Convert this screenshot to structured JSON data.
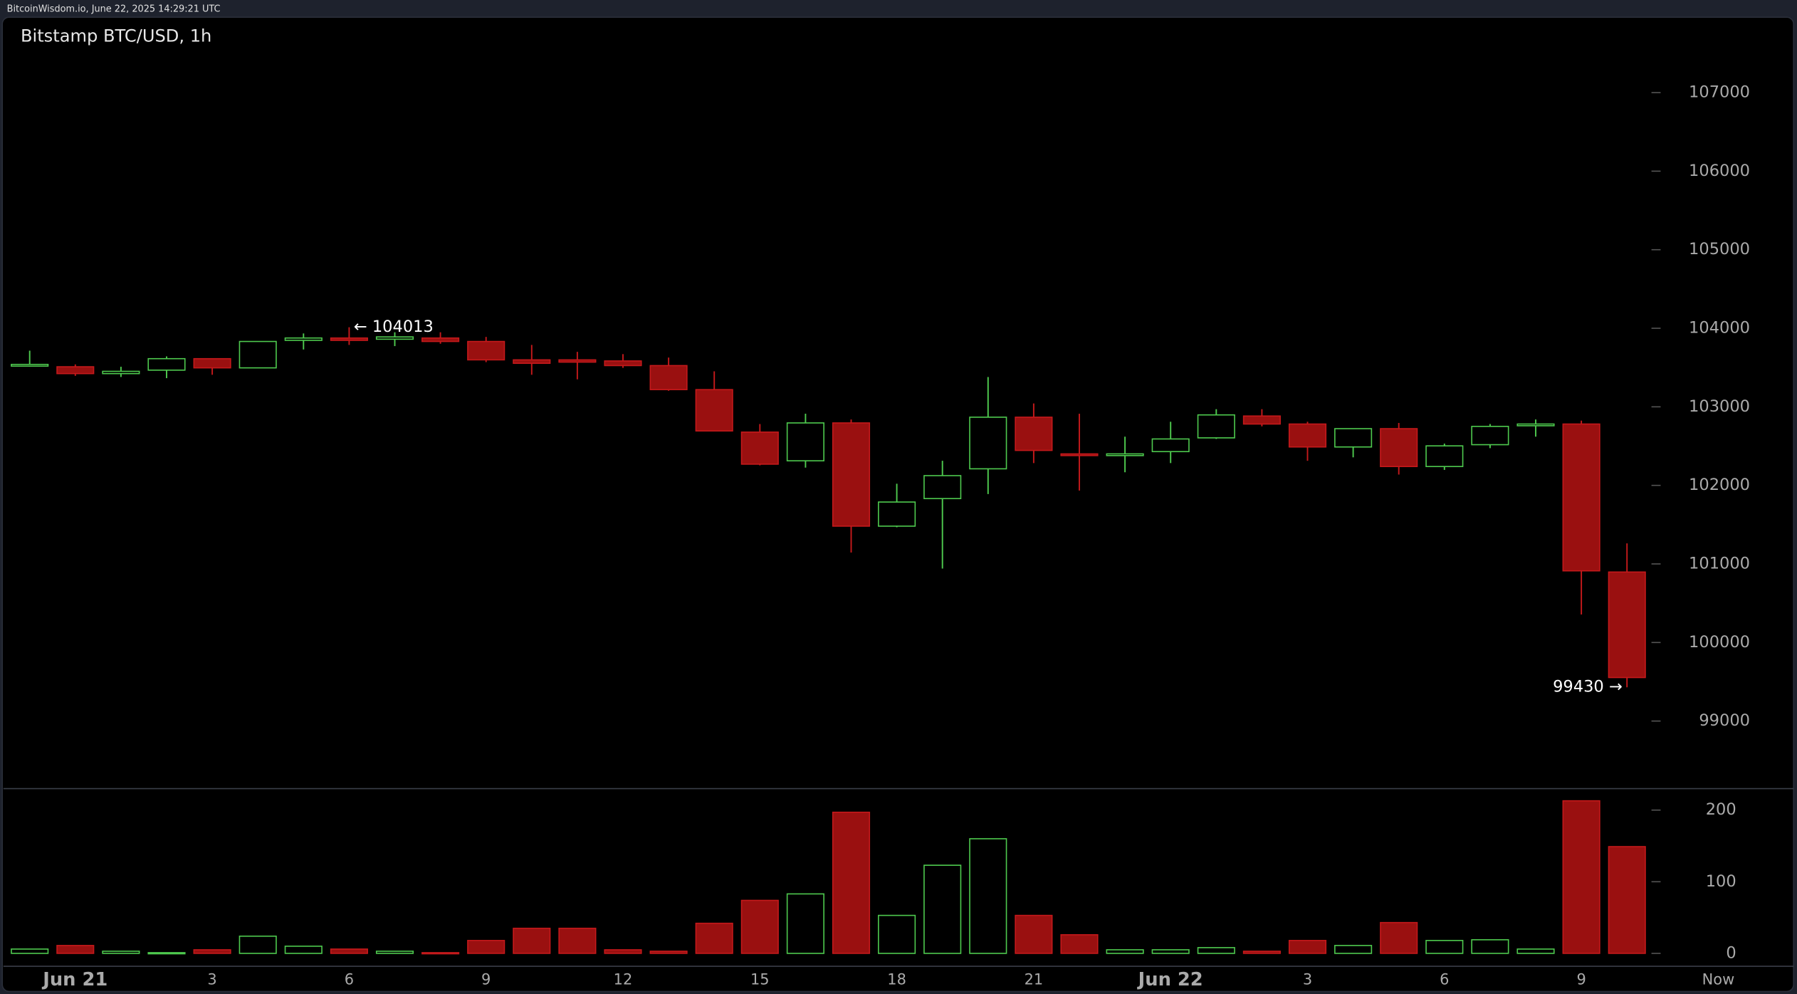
{
  "header": "BitcoinWisdom.io, June 22, 2025 14:29:21 UTC",
  "chart_data": {
    "type": "candlestick",
    "title": "Bitstamp BTC/USD, 1h",
    "up_color": "#4ec94e",
    "down_color": "#9a1010",
    "x": [
      -1,
      0,
      1,
      2,
      3,
      4,
      5,
      6,
      7,
      8,
      9,
      10,
      11,
      12,
      13,
      14,
      15,
      16,
      17,
      18,
      19,
      20,
      21,
      22,
      23,
      24,
      25,
      26,
      27,
      28,
      29,
      30,
      31,
      32,
      33,
      34
    ],
    "open": [
      103530,
      103510,
      103423,
      103467,
      103613,
      103496,
      103846,
      103876,
      103861,
      103876,
      103832,
      103598,
      103598,
      103584,
      103525,
      103219,
      102678,
      102313,
      102795,
      101481,
      101832,
      102211,
      102868,
      102401,
      102386,
      102430,
      102605,
      102883,
      102781,
      102489,
      102722,
      102240,
      102518,
      102766,
      102781,
      100897
    ],
    "high": [
      103715,
      103540,
      103510,
      103642,
      103613,
      103832,
      103934,
      104013,
      103949,
      103949,
      103890,
      103788,
      103700,
      103671,
      103627,
      103452,
      102781,
      102912,
      102839,
      102021,
      102313,
      103379,
      103043,
      102912,
      102620,
      102810,
      102970,
      102970,
      102810,
      102722,
      102795,
      102532,
      102781,
      102839,
      102824,
      101262
    ],
    "low": [
      103510,
      103394,
      103380,
      103365,
      103408,
      103496,
      103730,
      103788,
      103773,
      103803,
      103569,
      103408,
      103350,
      103496,
      103204,
      102693,
      102255,
      102226,
      101145,
      101467,
      100941,
      101890,
      102284,
      101934,
      102167,
      102284,
      102591,
      102751,
      102313,
      102357,
      102138,
      102197,
      102474,
      102620,
      100357,
      99430
    ],
    "close": [
      103540,
      103423,
      103452,
      103613,
      103496,
      103832,
      103876,
      103846,
      103890,
      103832,
      103598,
      103554,
      103569,
      103525,
      103219,
      102693,
      102270,
      102795,
      101481,
      101788,
      102124,
      102868,
      102445,
      102386,
      102401,
      102591,
      102897,
      102781,
      102489,
      102722,
      102240,
      102503,
      102751,
      102781,
      100912,
      99554
    ],
    "volume": [
      6,
      11,
      3,
      1,
      5,
      24,
      10,
      6,
      3,
      1,
      18,
      35,
      35,
      5,
      3,
      42,
      74,
      83,
      197,
      53,
      123,
      160,
      53,
      26,
      5,
      5,
      8,
      3,
      18,
      11,
      43,
      18,
      19,
      6,
      213,
      149
    ],
    "xlim": [
      -1.55,
      37.65
    ],
    "xticks": [
      {
        "value": 0,
        "label": "Jun 21"
      },
      3,
      6,
      9,
      12,
      15,
      18,
      21,
      {
        "value": 24,
        "label": "Jun 22"
      },
      {
        "value": 27,
        "label": "3"
      },
      {
        "value": 30,
        "label": "6"
      },
      {
        "value": 33,
        "label": "9"
      },
      {
        "value": 36,
        "label": "Now"
      }
    ],
    "ylim": [
      98140,
      107960
    ],
    "yticks": [
      99000,
      100000,
      101000,
      102000,
      103000,
      104000,
      105000,
      106000,
      107000
    ],
    "volume_ylim": [
      -18,
      230
    ],
    "volume_yticks": [
      0,
      100,
      200
    ],
    "annotations": [
      {
        "label": "← 104013",
        "value": 104013,
        "x": 6,
        "side": "right"
      },
      {
        "label": "99430 →",
        "value": 99430,
        "x": 34,
        "side": "left"
      }
    ]
  }
}
